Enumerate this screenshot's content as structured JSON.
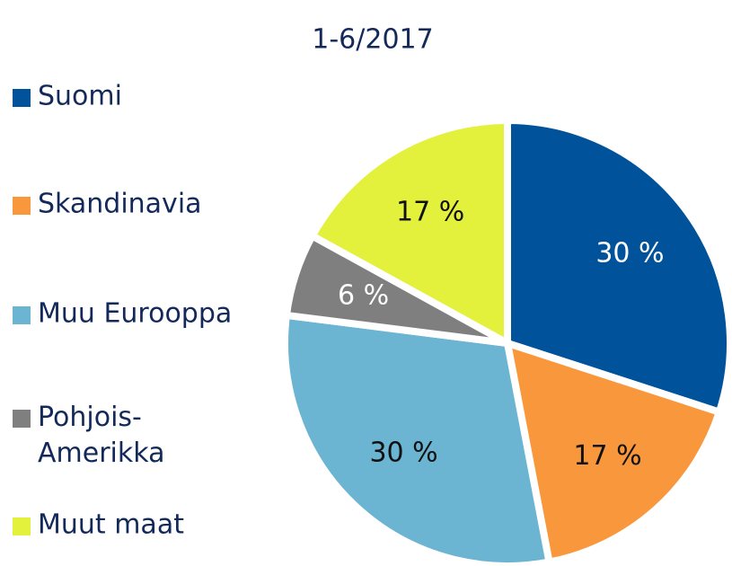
{
  "chart_data": {
    "type": "pie",
    "title": "1-6/2017",
    "categories": [
      "Suomi",
      "Skandinavia",
      "Muu Eurooppa",
      "Pohjois-Amerikka",
      "Muut maat"
    ],
    "values": [
      30,
      17,
      30,
      6,
      17
    ],
    "value_labels": [
      "30 %",
      "17 %",
      "30 %",
      "6 %",
      "17 %"
    ],
    "colors": [
      "#00529b",
      "#f9973d",
      "#6bb4d2",
      "#7f7f7f",
      "#e3f03c"
    ],
    "legend": "left"
  }
}
